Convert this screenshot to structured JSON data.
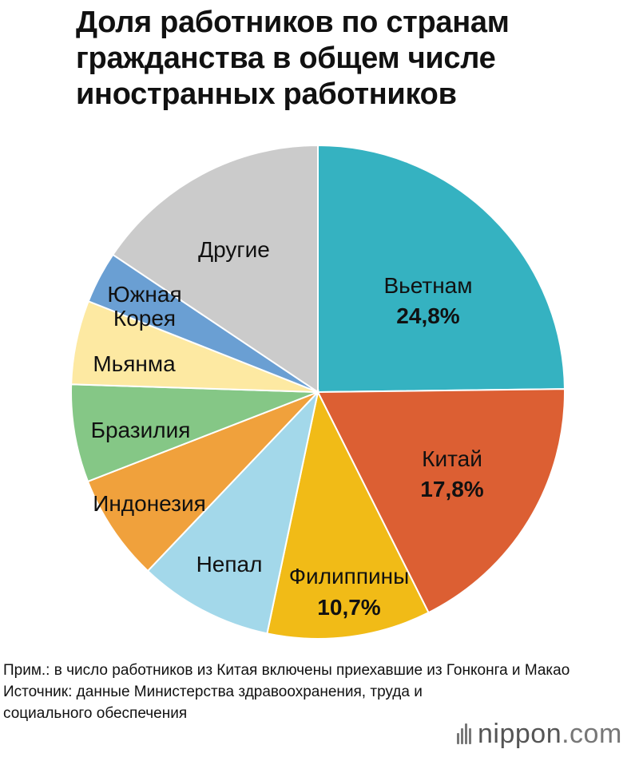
{
  "title": "Доля работников по странам гражданства в общем числе иностранных работников",
  "notes": {
    "note": "Прим.: в число работников из Китая включены приехавшие из Гонконга и Макао",
    "source": "Источник: данные Министерства здравоохранения, труда и социального обеспечения"
  },
  "logo": {
    "brand": "nippon",
    "suffix": ".com"
  },
  "chart_data": {
    "type": "pie",
    "title": "Доля работников по странам гражданства в общем числе иностранных работников",
    "start": "12 o'clock, clockwise",
    "slices": [
      {
        "label": "Вьетнам",
        "value": 24.8,
        "value_label": "24,8%",
        "color": "#35b2c1"
      },
      {
        "label": "Китай",
        "value": 17.8,
        "value_label": "17,8%",
        "color": "#dc5f33"
      },
      {
        "label": "Филиппины",
        "value": 10.7,
        "value_label": "10,7%",
        "color": "#f1bb17"
      },
      {
        "label": "Непал",
        "value": 8.8,
        "value_label": "",
        "color": "#a3d8ea"
      },
      {
        "label": "Индонезия",
        "value": 7.0,
        "value_label": "",
        "color": "#f0a13c"
      },
      {
        "label": "Бразилия",
        "value": 6.4,
        "value_label": "",
        "color": "#85c786"
      },
      {
        "label": "Мьянма",
        "value": 5.5,
        "value_label": "",
        "color": "#fde9a2"
      },
      {
        "label": "Южная Корея",
        "label_lines": [
          "Южная",
          "Корея"
        ],
        "value": 3.4,
        "value_label": "",
        "color": "#6a9fd3"
      },
      {
        "label": "Другие",
        "value": 15.6,
        "value_label": "",
        "color": "#cbcbcb"
      }
    ]
  }
}
